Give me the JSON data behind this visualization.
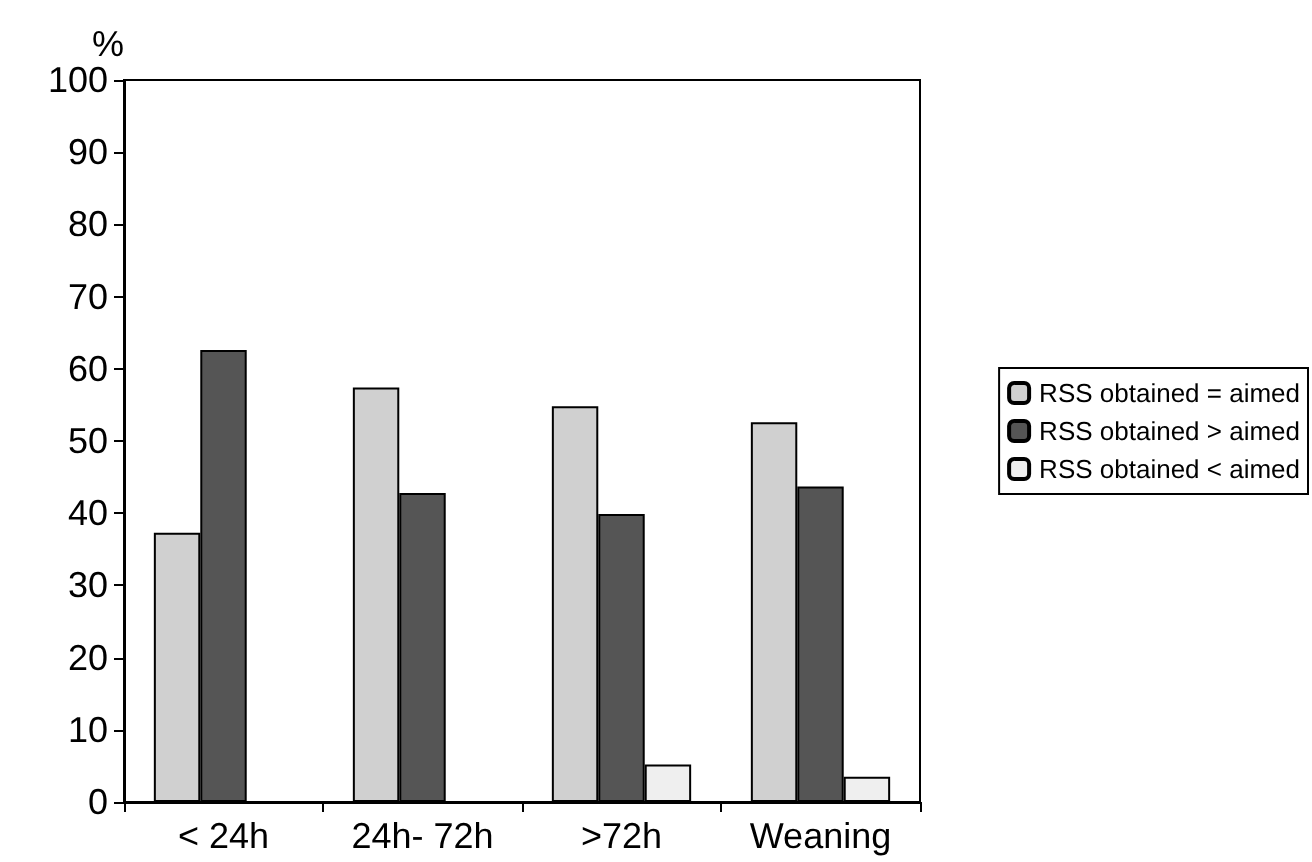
{
  "chart_data": {
    "type": "bar",
    "ylabel": "%",
    "categories": [
      "< 24h",
      "24h- 72h",
      ">72h",
      "Weaning"
    ],
    "series": [
      {
        "name": "RSS obtained = aimed",
        "color": "#d0d0d0",
        "values": [
          37.3,
          57.4,
          54.8,
          52.6
        ]
      },
      {
        "name": "RSS obtained > aimed",
        "color": "#555555",
        "values": [
          62.6,
          42.8,
          39.9,
          43.7
        ]
      },
      {
        "name": "RSS obtained < aimed",
        "color": "#efefef",
        "values": [
          null,
          null,
          5.2,
          3.5
        ]
      }
    ],
    "ylim": [
      0,
      100
    ],
    "yticks": [
      0,
      10,
      20,
      30,
      40,
      50,
      60,
      70,
      80,
      90,
      100
    ],
    "grid": false,
    "legend": "right"
  }
}
